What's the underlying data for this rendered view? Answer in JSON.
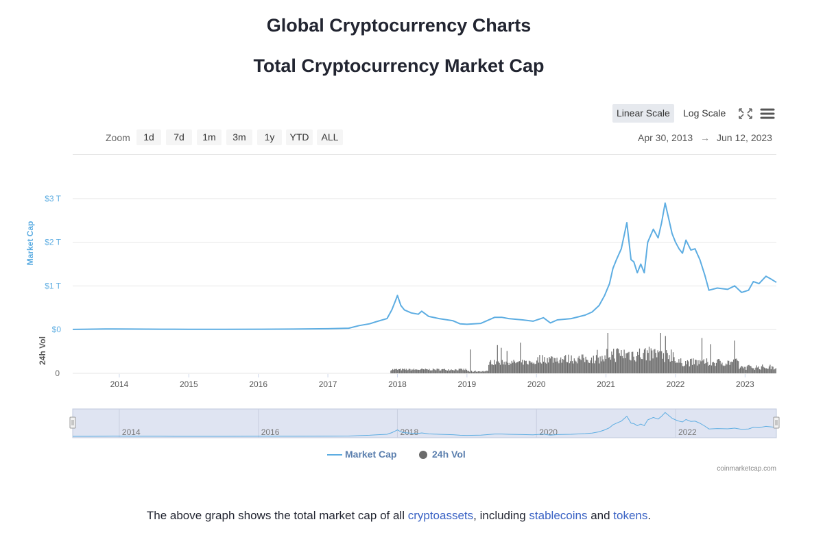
{
  "page": {
    "title": "Global Cryptocurrency Charts",
    "subtitle": "Total Cryptocurrency Market Cap"
  },
  "toolbar": {
    "linear_scale": "Linear Scale",
    "log_scale": "Log Scale",
    "active_scale": "Linear Scale",
    "zoom_label": "Zoom",
    "zoom_buttons": [
      "1d",
      "7d",
      "1m",
      "3m",
      "1y",
      "YTD",
      "ALL"
    ],
    "range_from": "Apr 30, 2013",
    "range_arrow": "→",
    "range_to": "Jun 12, 2023",
    "icons": [
      "fullscreen-icon",
      "menu-icon"
    ]
  },
  "chart_data": {
    "type": "line",
    "title": "",
    "xlabel": "",
    "ylabel": "Market Cap",
    "y2label": "24h Vol",
    "x_ticks": [
      "2014",
      "2015",
      "2016",
      "2017",
      "2018",
      "2019",
      "2020",
      "2021",
      "2022",
      "2023"
    ],
    "y_ticks": [
      "$0",
      "$1 T",
      "$2 T",
      "$3 T"
    ],
    "y2_ticks": [
      "0"
    ],
    "ylim": [
      0,
      3
    ],
    "y_unit": "T USD",
    "xlim": [
      2013.33,
      2023.45
    ],
    "grid": true,
    "legend_position": "bottom-center",
    "series": [
      {
        "name": "Market Cap",
        "color": "#5dade2",
        "x": [
          2013.33,
          2013.8,
          2013.92,
          2014.2,
          2014.6,
          2015.0,
          2015.5,
          2016.0,
          2016.5,
          2017.0,
          2017.3,
          2017.45,
          2017.6,
          2017.7,
          2017.85,
          2017.92,
          2017.97,
          2018.0,
          2018.05,
          2018.1,
          2018.2,
          2018.3,
          2018.35,
          2018.45,
          2018.6,
          2018.8,
          2018.9,
          2019.0,
          2019.2,
          2019.4,
          2019.5,
          2019.6,
          2019.8,
          2019.95,
          2020.1,
          2020.2,
          2020.3,
          2020.5,
          2020.7,
          2020.8,
          2020.9,
          2020.98,
          2021.05,
          2021.1,
          2021.15,
          2021.22,
          2021.3,
          2021.36,
          2021.4,
          2021.45,
          2021.5,
          2021.55,
          2021.6,
          2021.68,
          2021.75,
          2021.8,
          2021.85,
          2021.9,
          2021.95,
          2022.0,
          2022.05,
          2022.1,
          2022.15,
          2022.22,
          2022.28,
          2022.35,
          2022.42,
          2022.48,
          2022.6,
          2022.75,
          2022.85,
          2022.95,
          2023.05,
          2023.12,
          2023.2,
          2023.3,
          2023.38,
          2023.45
        ],
        "values": [
          0.0015,
          0.012,
          0.013,
          0.009,
          0.006,
          0.004,
          0.004,
          0.006,
          0.01,
          0.018,
          0.03,
          0.09,
          0.13,
          0.18,
          0.25,
          0.45,
          0.65,
          0.78,
          0.55,
          0.45,
          0.38,
          0.35,
          0.42,
          0.3,
          0.25,
          0.2,
          0.13,
          0.12,
          0.14,
          0.28,
          0.28,
          0.25,
          0.22,
          0.19,
          0.27,
          0.15,
          0.22,
          0.25,
          0.33,
          0.4,
          0.55,
          0.78,
          1.05,
          1.4,
          1.6,
          1.85,
          2.45,
          1.6,
          1.55,
          1.3,
          1.5,
          1.3,
          2.0,
          2.3,
          2.1,
          2.45,
          2.9,
          2.55,
          2.2,
          2.0,
          1.85,
          1.75,
          2.05,
          1.82,
          1.85,
          1.6,
          1.25,
          0.9,
          0.95,
          0.92,
          1.0,
          0.85,
          0.9,
          1.1,
          1.05,
          1.22,
          1.15,
          1.08
        ]
      },
      {
        "name": "24h Vol",
        "color": "#6b6b6b"
      }
    ],
    "navigator": {
      "x_ticks": [
        "2014",
        "2016",
        "2018",
        "2020",
        "2022"
      ]
    }
  },
  "legend": {
    "items": [
      "Market Cap",
      "24h Vol"
    ]
  },
  "credit": "coinmarketcap.com",
  "caption": {
    "before": "The above graph shows the total market cap of all ",
    "link1": "cryptoassets",
    "mid1": ", including ",
    "link2": "stablecoins",
    "mid2": " and ",
    "link3": "tokens",
    "end": "."
  }
}
